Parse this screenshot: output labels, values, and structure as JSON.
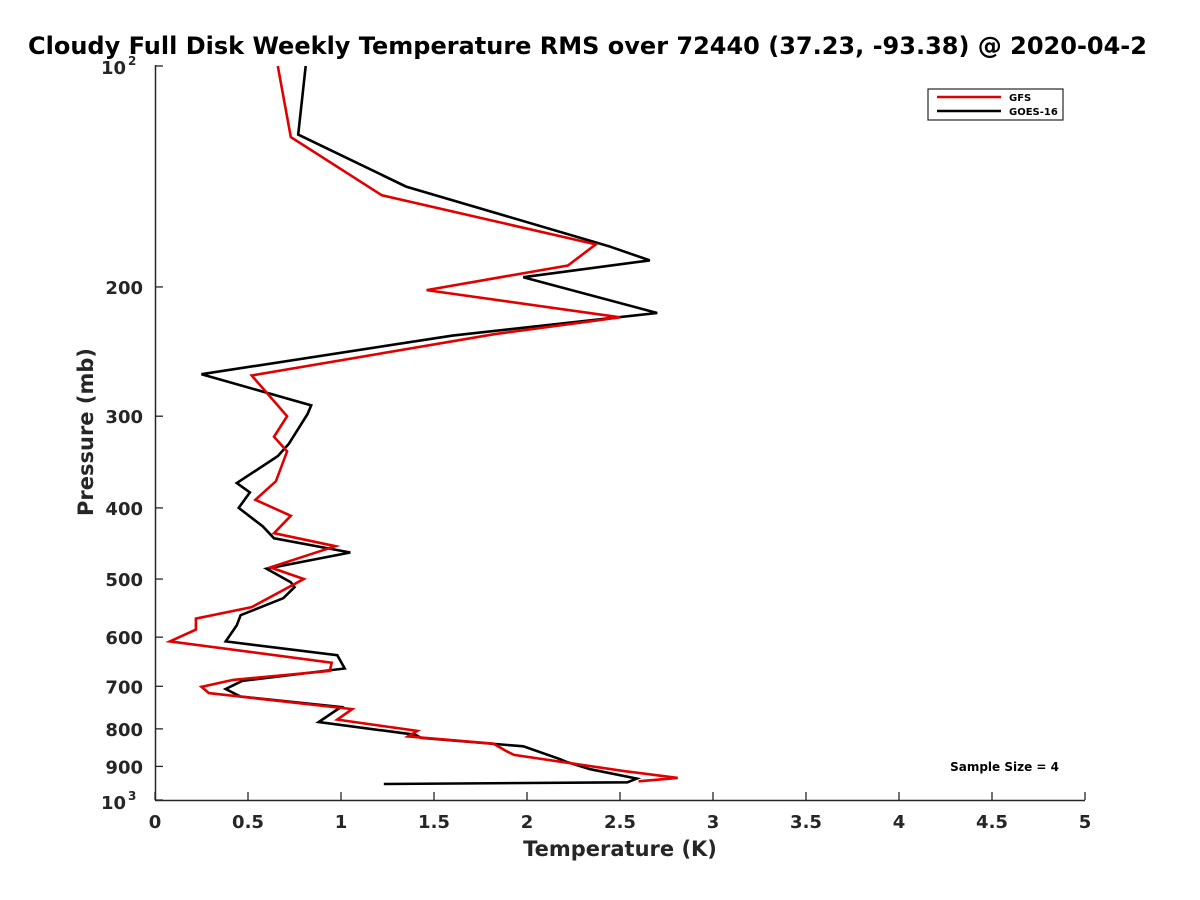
{
  "chart_data": {
    "type": "line",
    "title": "Cloudy Full Disk Weekly Temperature RMS over 72440 (37.23, -93.38) @ 2020-04-2",
    "xlabel": "Temperature (K)",
    "ylabel": "Pressure (mb)",
    "xlim": [
      0,
      5
    ],
    "ylim": [
      100,
      1000
    ],
    "y_scale": "log",
    "y_reversed": true,
    "grid": false,
    "legend_position": "top-right",
    "x_ticks": [
      "0",
      "0.5",
      "1",
      "1.5",
      "2",
      "2.5",
      "3",
      "3.5",
      "4",
      "4.5",
      "5"
    ],
    "y_ticks": [
      {
        "value": 100,
        "base": "10",
        "exp": "2"
      },
      {
        "value": 200,
        "label": "200"
      },
      {
        "value": 300,
        "label": "300"
      },
      {
        "value": 400,
        "label": "400"
      },
      {
        "value": 500,
        "label": "500"
      },
      {
        "value": 600,
        "label": "600"
      },
      {
        "value": 700,
        "label": "700"
      },
      {
        "value": 800,
        "label": "800"
      },
      {
        "value": 900,
        "label": "900"
      },
      {
        "value": 1000,
        "base": "10",
        "exp": "3"
      }
    ],
    "series": [
      {
        "name": "GFS",
        "color": "#e00000",
        "points": [
          [
            0.66,
            100
          ],
          [
            0.73,
            125
          ],
          [
            1.22,
            150
          ],
          [
            2.37,
            175
          ],
          [
            2.22,
            187
          ],
          [
            1.46,
            202
          ],
          [
            2.5,
            220
          ],
          [
            1.82,
            232
          ],
          [
            0.52,
            264
          ],
          [
            0.71,
            300
          ],
          [
            0.64,
            320
          ],
          [
            0.71,
            335
          ],
          [
            0.65,
            368
          ],
          [
            0.54,
            390
          ],
          [
            0.73,
            410
          ],
          [
            0.64,
            433
          ],
          [
            0.97,
            451
          ],
          [
            0.62,
            482
          ],
          [
            0.8,
            500
          ],
          [
            0.52,
            546
          ],
          [
            0.22,
            566
          ],
          [
            0.22,
            586
          ],
          [
            0.08,
            608
          ],
          [
            0.95,
            650
          ],
          [
            0.94,
            667
          ],
          [
            0.42,
            686
          ],
          [
            0.25,
            701
          ],
          [
            0.29,
            715
          ],
          [
            1.06,
            752
          ],
          [
            0.98,
            777
          ],
          [
            1.41,
            805
          ],
          [
            1.36,
            819
          ],
          [
            1.82,
            838
          ],
          [
            1.89,
            858
          ],
          [
            1.93,
            868
          ],
          [
            2.53,
            914
          ],
          [
            2.81,
            933
          ],
          [
            2.6,
            943
          ]
        ]
      },
      {
        "name": "GOES-16",
        "color": "#000000",
        "points": [
          [
            0.81,
            100
          ],
          [
            0.77,
            124
          ],
          [
            1.35,
            146
          ],
          [
            2.44,
            176
          ],
          [
            2.66,
            184
          ],
          [
            1.98,
            194
          ],
          [
            2.7,
            217
          ],
          [
            1.6,
            233
          ],
          [
            0.25,
            263
          ],
          [
            0.84,
            290
          ],
          [
            0.82,
            298
          ],
          [
            0.72,
            327
          ],
          [
            0.66,
            340
          ],
          [
            0.44,
            370
          ],
          [
            0.51,
            381
          ],
          [
            0.45,
            400
          ],
          [
            0.58,
            424
          ],
          [
            0.64,
            440
          ],
          [
            1.05,
            460
          ],
          [
            0.6,
            484
          ],
          [
            0.73,
            505
          ],
          [
            0.75,
            513
          ],
          [
            0.69,
            531
          ],
          [
            0.46,
            560
          ],
          [
            0.44,
            578
          ],
          [
            0.38,
            608
          ],
          [
            0.98,
            635
          ],
          [
            1.02,
            662
          ],
          [
            0.47,
            688
          ],
          [
            0.38,
            706
          ],
          [
            0.46,
            723
          ],
          [
            1.0,
            747
          ],
          [
            0.88,
            783
          ],
          [
            1.4,
            815
          ],
          [
            1.43,
            823
          ],
          [
            1.98,
            845
          ],
          [
            2.18,
            880
          ],
          [
            2.21,
            887
          ],
          [
            2.34,
            908
          ],
          [
            2.59,
            935
          ],
          [
            2.54,
            946
          ],
          [
            1.23,
            951
          ]
        ]
      }
    ],
    "annotations": [
      {
        "text": "Sample Size = 4"
      }
    ]
  }
}
